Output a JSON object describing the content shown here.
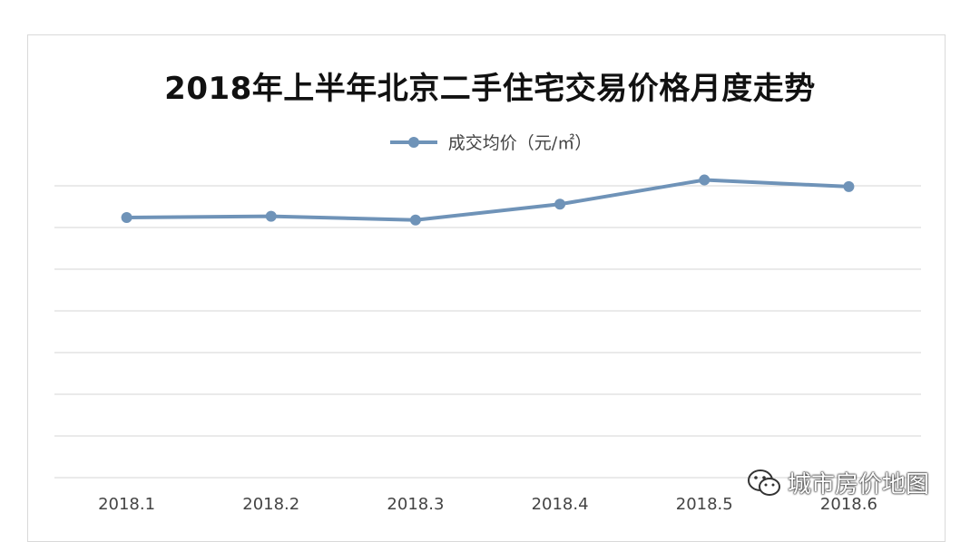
{
  "chart_data": {
    "type": "line",
    "title": "2018年上半年北京二手住宅交易价格月度走势",
    "categories": [
      "2018.1",
      "2018.2",
      "2018.3",
      "2018.4",
      "2018.5",
      "2018.6"
    ],
    "series": [
      {
        "name": "成交均价（元/㎡）",
        "values": [
          62400,
          62700,
          61800,
          65600,
          71400,
          69800
        ]
      }
    ],
    "ylim": [
      0,
      70000
    ],
    "grid": true,
    "legend_position": "top",
    "series_color": "#6f93b8",
    "xlabel": "",
    "ylabel": ""
  },
  "watermark": {
    "text": "城市房价地图",
    "icon": "wechat-icon"
  }
}
